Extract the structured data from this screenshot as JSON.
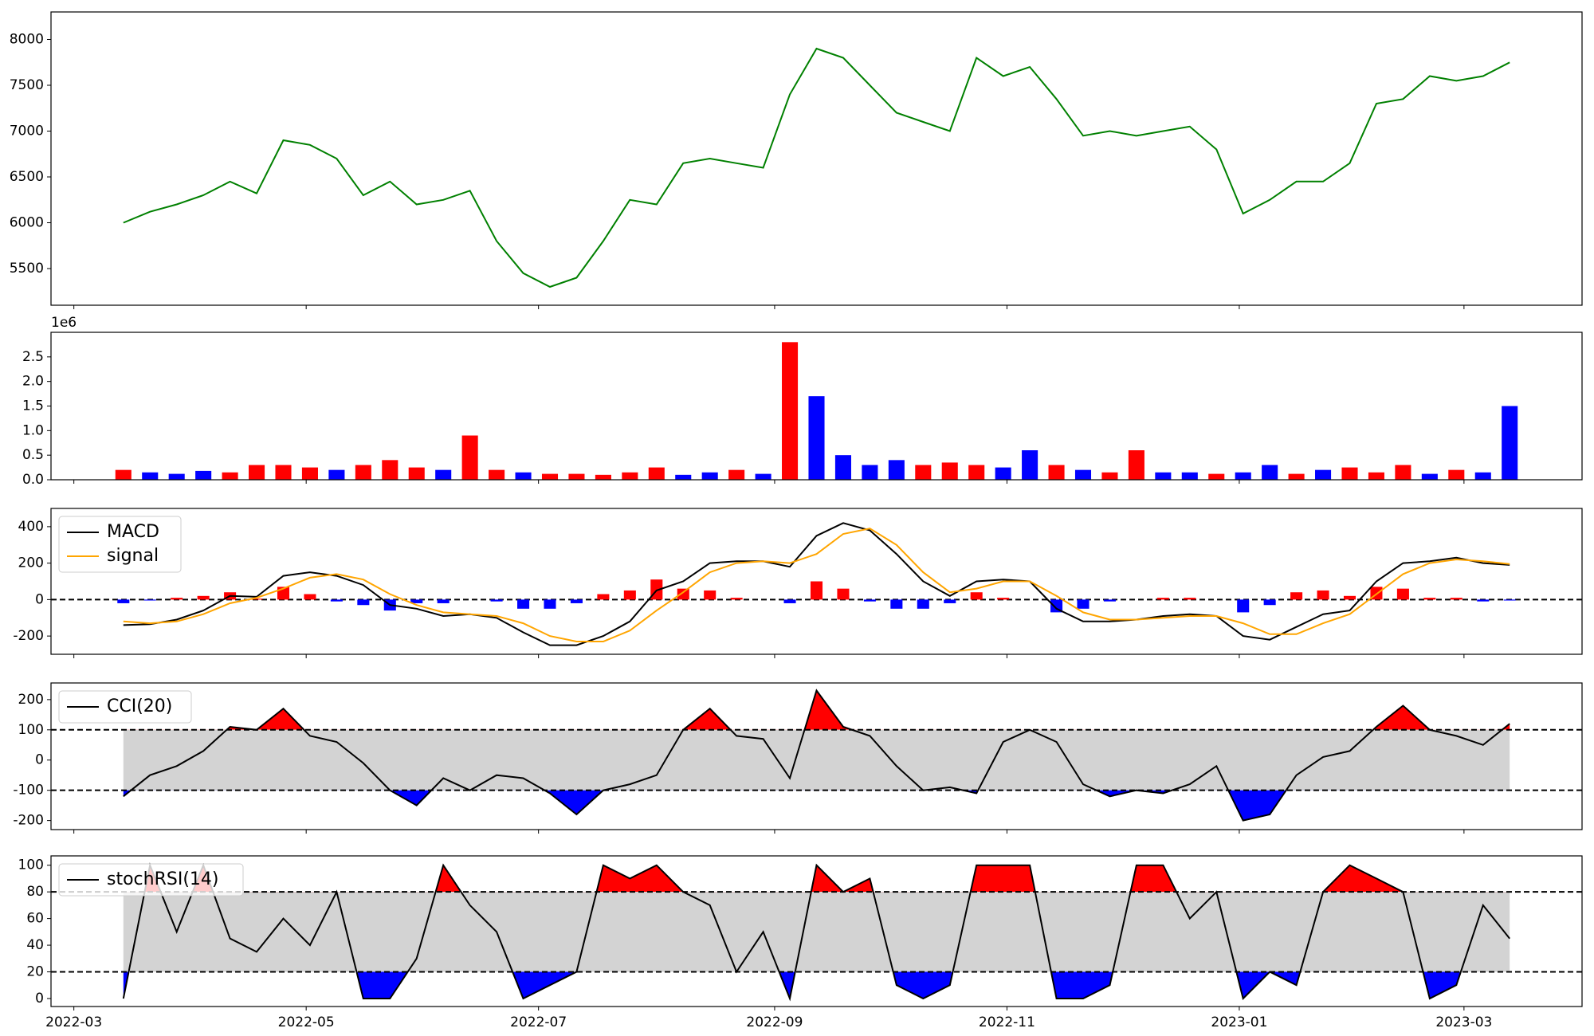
{
  "chart_data": [
    {
      "type": "line",
      "color": "#008000",
      "x": [
        13,
        20,
        27,
        34,
        41,
        48,
        55,
        62,
        69,
        76,
        83,
        90,
        97,
        104,
        111,
        118,
        125,
        132,
        139,
        146,
        153,
        160,
        167,
        174,
        181,
        188,
        195,
        202,
        209,
        216,
        223,
        230,
        237,
        244,
        251,
        258,
        265,
        272,
        279,
        286,
        293,
        300,
        307,
        314,
        321,
        328,
        335,
        342,
        349,
        356,
        363,
        370,
        377
      ],
      "values": [
        6000,
        6120,
        6200,
        6300,
        6450,
        6320,
        6900,
        6850,
        6700,
        6300,
        6450,
        6200,
        6250,
        6350,
        5800,
        5450,
        5300,
        5400,
        5800,
        6250,
        6200,
        6650,
        6700,
        6650,
        6600,
        7400,
        7900,
        7800,
        7500,
        7200,
        7100,
        7000,
        7800,
        7600,
        7700,
        7350,
        6950,
        7000,
        6950,
        7000,
        7050,
        6800,
        6100,
        6250,
        6450,
        6450,
        6650,
        7300,
        7350,
        7600,
        7550,
        7600,
        7750
      ],
      "ylim": [
        5100,
        8300
      ],
      "yticks": [
        5500,
        6000,
        6500,
        7000,
        7500,
        8000
      ]
    },
    {
      "type": "bar",
      "offset_label": "1e6",
      "x": [
        13,
        20,
        27,
        34,
        41,
        48,
        55,
        62,
        69,
        76,
        83,
        90,
        97,
        104,
        111,
        118,
        125,
        132,
        139,
        146,
        153,
        160,
        167,
        174,
        181,
        188,
        195,
        202,
        209,
        216,
        223,
        230,
        237,
        244,
        251,
        258,
        265,
        272,
        279,
        286,
        293,
        300,
        307,
        314,
        321,
        328,
        335,
        342,
        349,
        356,
        363,
        370,
        377
      ],
      "values": [
        0.2,
        0.15,
        0.12,
        0.18,
        0.15,
        0.3,
        0.3,
        0.25,
        0.2,
        0.3,
        0.4,
        0.25,
        0.2,
        0.9,
        0.2,
        0.15,
        0.12,
        0.12,
        0.1,
        0.15,
        0.25,
        0.1,
        0.15,
        0.2,
        0.12,
        2.8,
        1.7,
        0.5,
        0.3,
        0.4,
        0.3,
        0.35,
        0.3,
        0.25,
        0.6,
        0.3,
        0.2,
        0.15,
        0.6,
        0.15,
        0.15,
        0.12,
        0.15,
        0.3,
        0.12,
        0.2,
        0.25,
        0.15,
        0.3,
        0.12,
        0.2,
        0.15,
        1.5
      ],
      "colors": [
        "#ff0000",
        "#0000ff",
        "#0000ff",
        "#0000ff",
        "#ff0000",
        "#ff0000",
        "#ff0000",
        "#ff0000",
        "#0000ff",
        "#ff0000",
        "#ff0000",
        "#ff0000",
        "#0000ff",
        "#ff0000",
        "#ff0000",
        "#0000ff",
        "#ff0000",
        "#ff0000",
        "#ff0000",
        "#ff0000",
        "#ff0000",
        "#0000ff",
        "#0000ff",
        "#ff0000",
        "#0000ff",
        "#ff0000",
        "#0000ff",
        "#0000ff",
        "#0000ff",
        "#0000ff",
        "#ff0000",
        "#ff0000",
        "#ff0000",
        "#0000ff",
        "#0000ff",
        "#ff0000",
        "#0000ff",
        "#ff0000",
        "#ff0000",
        "#0000ff",
        "#0000ff",
        "#ff0000",
        "#0000ff",
        "#0000ff",
        "#ff0000",
        "#0000ff",
        "#ff0000",
        "#ff0000",
        "#ff0000",
        "#0000ff",
        "#ff0000",
        "#0000ff",
        "#0000ff"
      ],
      "ylim": [
        0,
        3.0
      ],
      "yticks": [
        {
          "value": 0,
          "label": "0.0"
        },
        0.5,
        {
          "value": 1,
          "label": "1.0"
        },
        1.5,
        {
          "value": 2,
          "label": "2.0"
        },
        2.5
      ]
    },
    {
      "type": "line",
      "legend": "upper left",
      "x": [
        13,
        20,
        27,
        34,
        41,
        48,
        55,
        62,
        69,
        76,
        83,
        90,
        97,
        104,
        111,
        118,
        125,
        132,
        139,
        146,
        153,
        160,
        167,
        174,
        181,
        188,
        195,
        202,
        209,
        216,
        223,
        230,
        237,
        244,
        251,
        258,
        265,
        272,
        279,
        286,
        293,
        300,
        307,
        314,
        321,
        328,
        335,
        342,
        349,
        356,
        363,
        370,
        377
      ],
      "series": [
        {
          "name": "MACD",
          "color": "#000000",
          "values": [
            -140,
            -135,
            -110,
            -60,
            20,
            15,
            130,
            150,
            130,
            80,
            -30,
            -50,
            -90,
            -80,
            -100,
            -180,
            -250,
            -250,
            -200,
            -120,
            50,
            100,
            200,
            210,
            210,
            180,
            350,
            420,
            380,
            250,
            100,
            20,
            100,
            110,
            100,
            -50,
            -120,
            -120,
            -110,
            -90,
            -80,
            -90,
            -200,
            -220,
            -150,
            -80,
            -60,
            100,
            200,
            210,
            230,
            200,
            190
          ]
        },
        {
          "name": "signal",
          "color": "#ffa500",
          "values": [
            -120,
            -130,
            -120,
            -80,
            -20,
            10,
            60,
            120,
            140,
            110,
            30,
            -30,
            -70,
            -80,
            -90,
            -130,
            -200,
            -230,
            -230,
            -170,
            -60,
            40,
            150,
            200,
            210,
            200,
            250,
            360,
            390,
            300,
            150,
            40,
            60,
            100,
            100,
            20,
            -70,
            -110,
            -110,
            -100,
            -90,
            -90,
            -130,
            -190,
            -190,
            -130,
            -80,
            30,
            140,
            200,
            220,
            210,
            195
          ]
        }
      ],
      "histogram": {
        "up_color": "#ff0000",
        "down_color": "#0000ff",
        "values": [
          -20,
          -5,
          10,
          20,
          40,
          5,
          70,
          30,
          -10,
          -30,
          -60,
          -20,
          -20,
          0,
          -10,
          -50,
          -50,
          -20,
          30,
          50,
          110,
          60,
          50,
          10,
          0,
          -20,
          100,
          60,
          -10,
          -50,
          -50,
          -20,
          40,
          10,
          0,
          -70,
          -50,
          -10,
          0,
          10,
          10,
          0,
          -70,
          -30,
          40,
          50,
          20,
          70,
          60,
          10,
          10,
          -10,
          -5
        ]
      },
      "hlines": [
        0
      ],
      "ylim": [
        -300,
        500
      ],
      "yticks": [
        -200,
        0,
        200,
        400
      ]
    },
    {
      "type": "line",
      "legend": "upper left",
      "x": [
        13,
        20,
        27,
        34,
        41,
        48,
        55,
        62,
        69,
        76,
        83,
        90,
        97,
        104,
        111,
        118,
        125,
        132,
        139,
        146,
        153,
        160,
        167,
        174,
        181,
        188,
        195,
        202,
        209,
        216,
        223,
        230,
        237,
        244,
        251,
        258,
        265,
        272,
        279,
        286,
        293,
        300,
        307,
        314,
        321,
        328,
        335,
        342,
        349,
        356,
        363,
        370,
        377
      ],
      "series": [
        {
          "name": "CCI(20)",
          "color": "#000000",
          "values": [
            -120,
            -50,
            -20,
            30,
            110,
            100,
            170,
            80,
            60,
            -10,
            -100,
            -150,
            -60,
            -100,
            -50,
            -60,
            -110,
            -180,
            -100,
            -80,
            -50,
            100,
            170,
            80,
            70,
            -60,
            230,
            110,
            80,
            -20,
            -100,
            -90,
            -110,
            60,
            100,
            60,
            -80,
            -120,
            -100,
            -110,
            -80,
            -20,
            -200,
            -180,
            -50,
            10,
            30,
            110,
            180,
            100,
            80,
            50,
            120
          ]
        }
      ],
      "bands": [
        -100,
        100
      ],
      "band_color": "#d3d3d3",
      "over_color": "#ff0000",
      "under_color": "#0000ff",
      "ylim": [
        -230,
        255
      ],
      "yticks": [
        -200,
        -100,
        0,
        100,
        200
      ]
    },
    {
      "type": "line",
      "legend": "upper left",
      "x": [
        13,
        20,
        27,
        34,
        41,
        48,
        55,
        62,
        69,
        76,
        83,
        90,
        97,
        104,
        111,
        118,
        125,
        132,
        139,
        146,
        153,
        160,
        167,
        174,
        181,
        188,
        195,
        202,
        209,
        216,
        223,
        230,
        237,
        244,
        251,
        258,
        265,
        272,
        279,
        286,
        293,
        300,
        307,
        314,
        321,
        328,
        335,
        342,
        349,
        356,
        363,
        370,
        377
      ],
      "series": [
        {
          "name": "stochRSI(14)",
          "color": "#000000",
          "values": [
            0,
            100,
            50,
            100,
            45,
            35,
            60,
            40,
            80,
            0,
            0,
            30,
            100,
            70,
            50,
            0,
            10,
            20,
            100,
            90,
            100,
            80,
            70,
            20,
            50,
            0,
            100,
            80,
            90,
            10,
            0,
            10,
            100,
            100,
            100,
            0,
            0,
            10,
            100,
            100,
            60,
            80,
            0,
            20,
            10,
            80,
            100,
            90,
            80,
            0,
            10,
            70,
            45
          ]
        }
      ],
      "bands": [
        20,
        80
      ],
      "band_color": "#d3d3d3",
      "over_color": "#ff0000",
      "under_color": "#0000ff",
      "ylim": [
        -6,
        107
      ],
      "yticks": [
        0,
        20,
        40,
        60,
        80,
        100
      ],
      "xlim": [
        -6,
        396
      ],
      "xticks": [
        {
          "value": 0,
          "label": "2022-03"
        },
        {
          "value": 61,
          "label": "2022-05"
        },
        {
          "value": 122,
          "label": "2022-07"
        },
        {
          "value": 184,
          "label": "2022-09"
        },
        {
          "value": 245,
          "label": "2022-11"
        },
        {
          "value": 306,
          "label": "2023-01"
        },
        {
          "value": 365,
          "label": "2023-03"
        }
      ]
    }
  ]
}
